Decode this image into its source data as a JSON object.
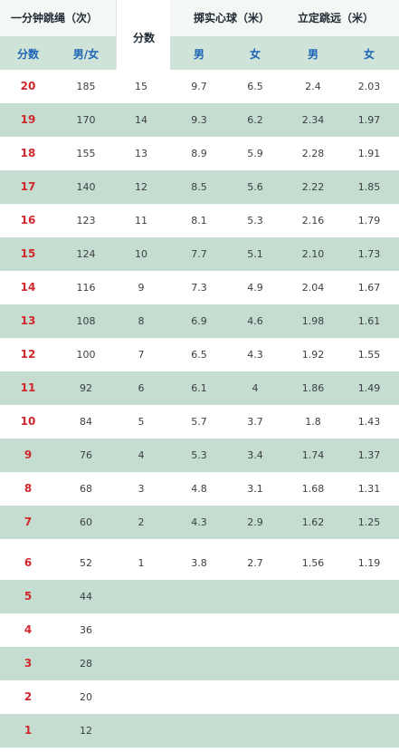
{
  "header": {
    "rope_title": "一分钟跳绳（次）",
    "score_label": "分数",
    "gender_label": "男/女",
    "mid_label": "分数",
    "ball_title": "掷实心球（米）",
    "jump_title": "立定跳远（米）",
    "male": "男",
    "female": "女"
  },
  "rows_top": [
    {
      "score": "20",
      "rope": "185",
      "score2": "15",
      "ball_m": "9.7",
      "ball_f": "6.5",
      "jump_m": "2.4",
      "jump_f": "2.03"
    },
    {
      "score": "19",
      "rope": "170",
      "score2": "14",
      "ball_m": "9.3",
      "ball_f": "6.2",
      "jump_m": "2.34",
      "jump_f": "1.97"
    },
    {
      "score": "18",
      "rope": "155",
      "score2": "13",
      "ball_m": "8.9",
      "ball_f": "5.9",
      "jump_m": "2.28",
      "jump_f": "1.91"
    },
    {
      "score": "17",
      "rope": "140",
      "score2": "12",
      "ball_m": "8.5",
      "ball_f": "5.6",
      "jump_m": "2.22",
      "jump_f": "1.85"
    },
    {
      "score": "16",
      "rope": "123",
      "score2": "11",
      "ball_m": "8.1",
      "ball_f": "5.3",
      "jump_m": "2.16",
      "jump_f": "1.79"
    },
    {
      "score": "15",
      "rope": "124",
      "score2": "10",
      "ball_m": "7.7",
      "ball_f": "5.1",
      "jump_m": "2.10",
      "jump_f": "1.73"
    },
    {
      "score": "14",
      "rope": "116",
      "score2": "9",
      "ball_m": "7.3",
      "ball_f": "4.9",
      "jump_m": "2.04",
      "jump_f": "1.67"
    },
    {
      "score": "13",
      "rope": "108",
      "score2": "8",
      "ball_m": "6.9",
      "ball_f": "4.6",
      "jump_m": "1.98",
      "jump_f": "1.61"
    },
    {
      "score": "12",
      "rope": "100",
      "score2": "7",
      "ball_m": "6.5",
      "ball_f": "4.3",
      "jump_m": "1.92",
      "jump_f": "1.55"
    },
    {
      "score": "11",
      "rope": "92",
      "score2": "6",
      "ball_m": "6.1",
      "ball_f": "4",
      "jump_m": "1.86",
      "jump_f": "1.49"
    },
    {
      "score": "10",
      "rope": "84",
      "score2": "5",
      "ball_m": "5.7",
      "ball_f": "3.7",
      "jump_m": "1.8",
      "jump_f": "1.43"
    },
    {
      "score": "9",
      "rope": "76",
      "score2": "4",
      "ball_m": "5.3",
      "ball_f": "3.4",
      "jump_m": "1.74",
      "jump_f": "1.37"
    },
    {
      "score": "8",
      "rope": "68",
      "score2": "3",
      "ball_m": "4.8",
      "ball_f": "3.1",
      "jump_m": "1.68",
      "jump_f": "1.31"
    },
    {
      "score": "7",
      "rope": "60",
      "score2": "2",
      "ball_m": "4.3",
      "ball_f": "2.9",
      "jump_m": "1.62",
      "jump_f": "1.25"
    }
  ],
  "rows_bottom": [
    {
      "score": "6",
      "rope": "52",
      "score2": "1",
      "ball_m": "3.8",
      "ball_f": "2.7",
      "jump_m": "1.56",
      "jump_f": "1.19"
    },
    {
      "score": "5",
      "rope": "44",
      "score2": "",
      "ball_m": "",
      "ball_f": "",
      "jump_m": "",
      "jump_f": ""
    },
    {
      "score": "4",
      "rope": "36",
      "score2": "",
      "ball_m": "",
      "ball_f": "",
      "jump_m": "",
      "jump_f": ""
    },
    {
      "score": "3",
      "rope": "28",
      "score2": "",
      "ball_m": "",
      "ball_f": "",
      "jump_m": "",
      "jump_f": ""
    },
    {
      "score": "2",
      "rope": "20",
      "score2": "",
      "ball_m": "",
      "ball_f": "",
      "jump_m": "",
      "jump_f": ""
    },
    {
      "score": "1",
      "rope": "12",
      "score2": "",
      "ball_m": "",
      "ball_f": "",
      "jump_m": "",
      "jump_f": ""
    }
  ],
  "colors": {
    "score_red": "#d0282d",
    "header_blue": "#1e66b5",
    "row_green": "#c4ddd0"
  }
}
